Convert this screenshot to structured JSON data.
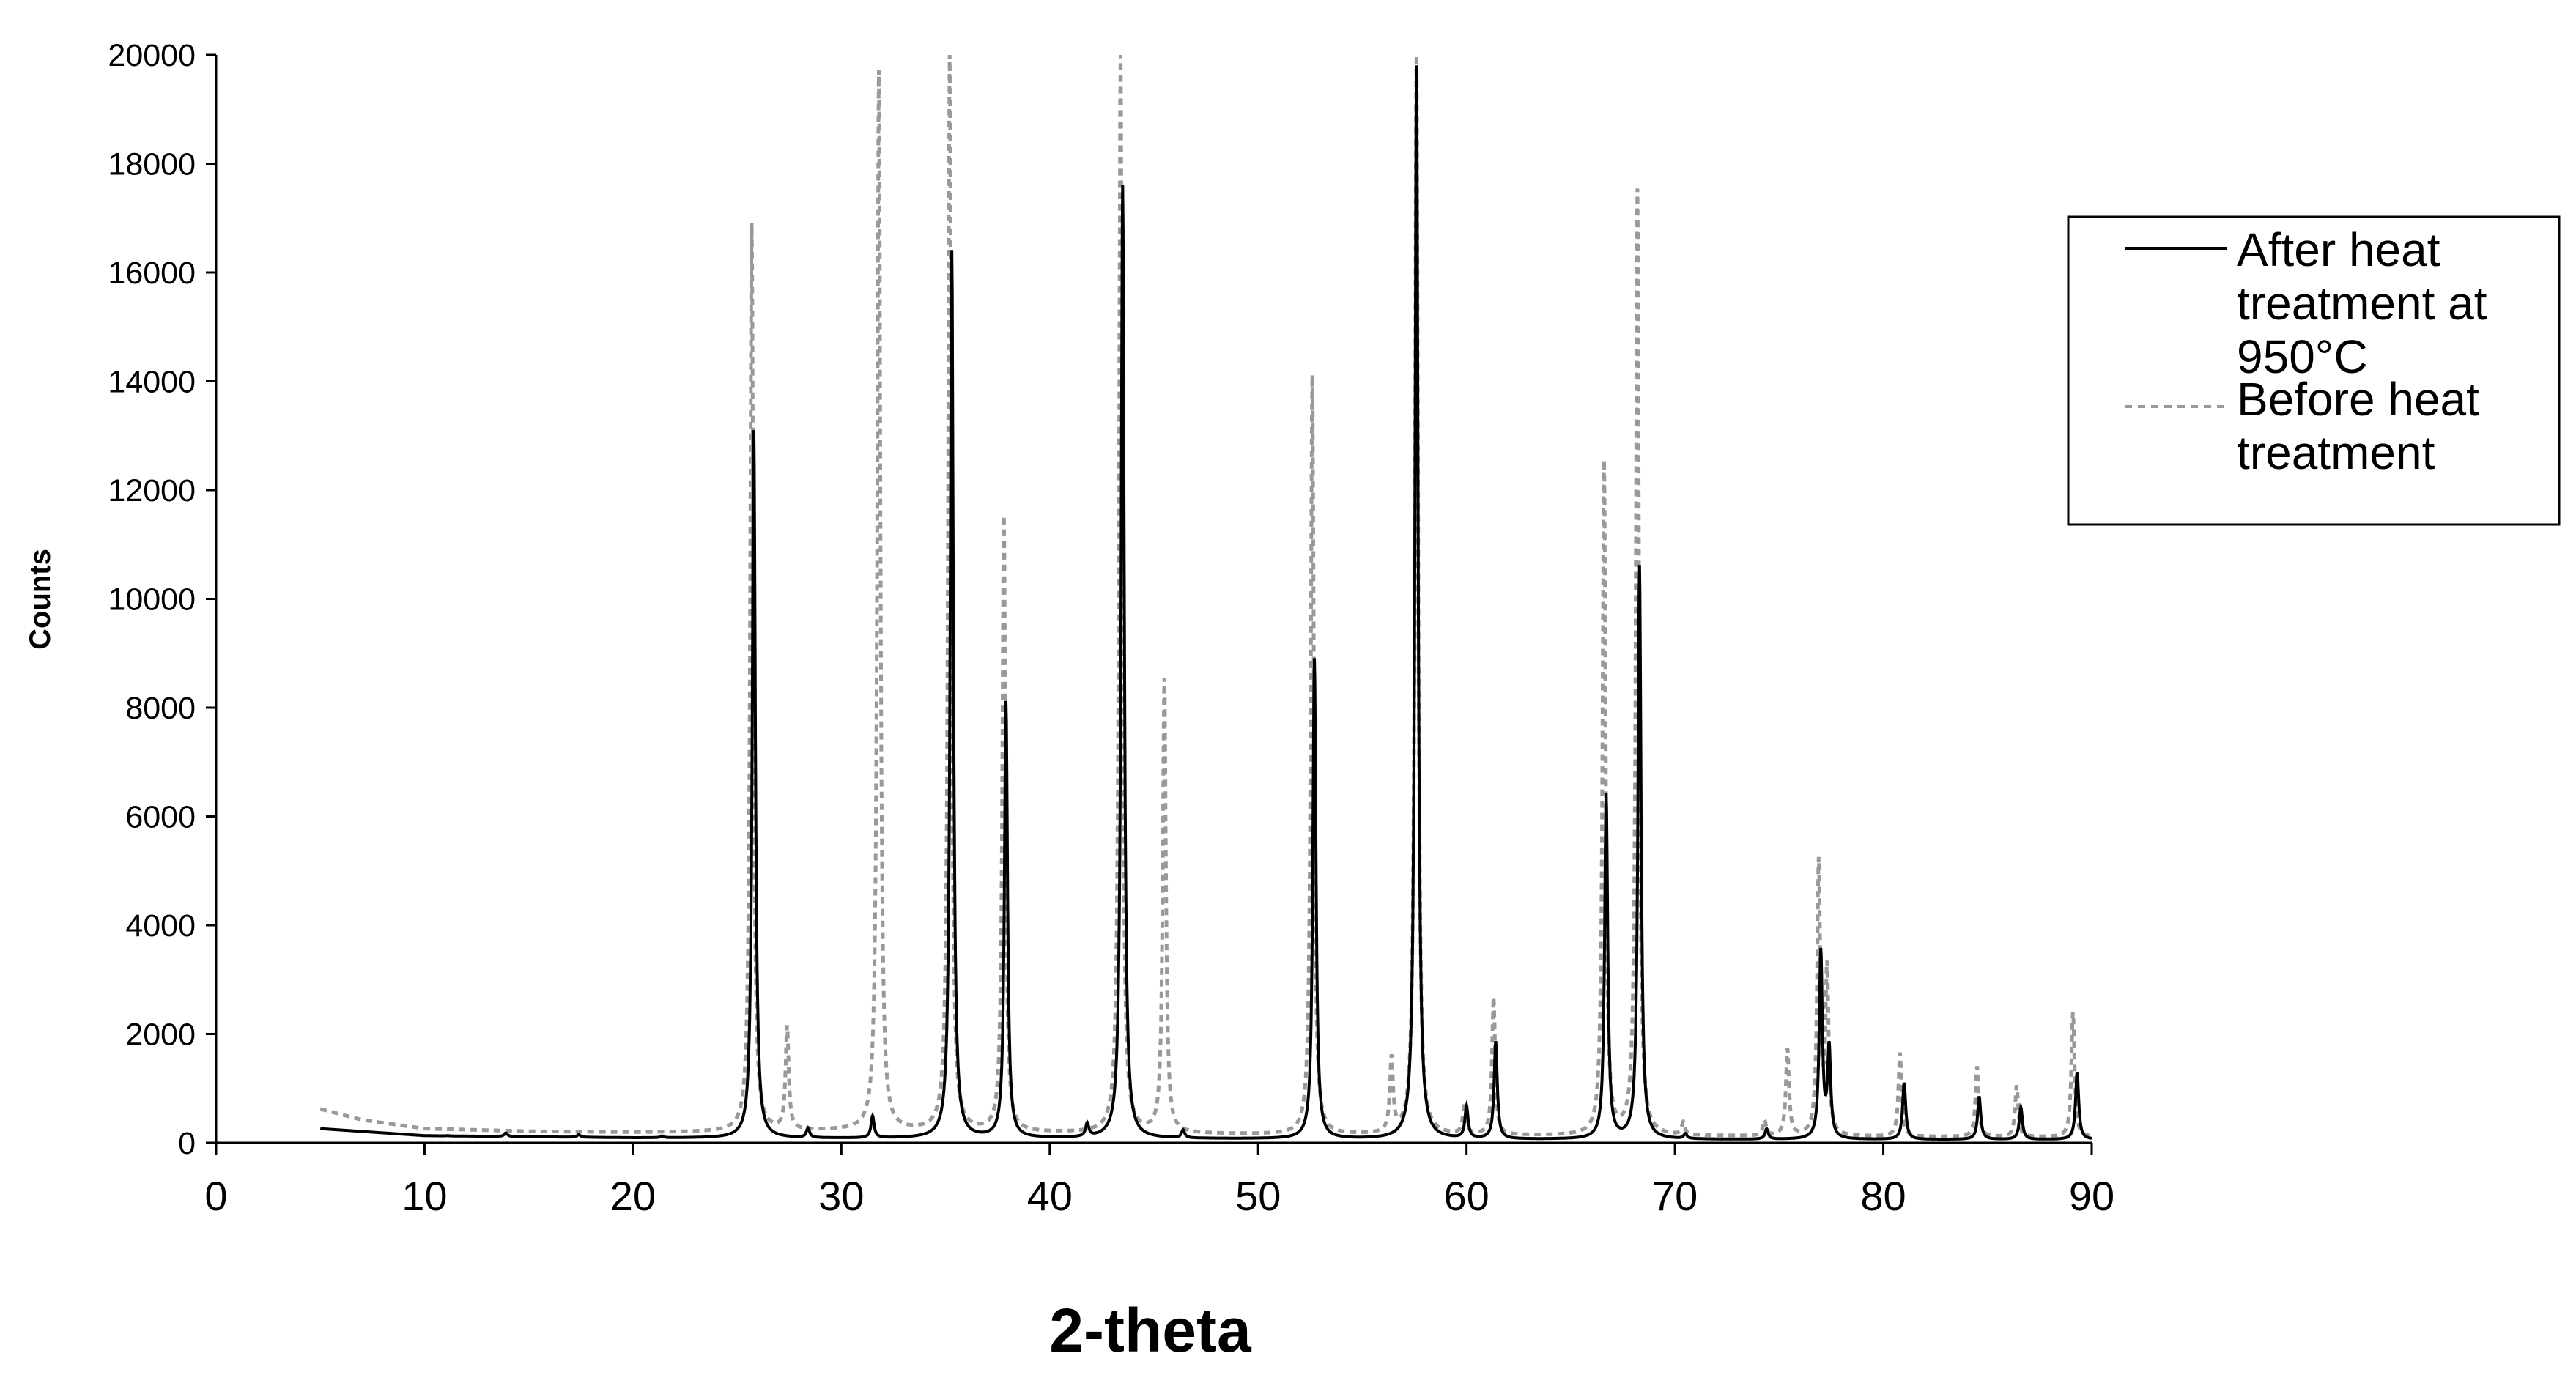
{
  "chart_data": {
    "type": "line",
    "title": "",
    "xlabel": "2-theta",
    "ylabel": "Counts",
    "xlim": [
      0,
      90
    ],
    "ylim": [
      0,
      20000
    ],
    "x_ticks": [
      0,
      10,
      20,
      30,
      40,
      50,
      60,
      70,
      80,
      90
    ],
    "y_ticks": [
      0,
      2000,
      4000,
      6000,
      8000,
      10000,
      12000,
      14000,
      16000,
      18000,
      20000
    ],
    "grid": false,
    "legend_position": "right",
    "series": [
      {
        "name": "After heat treatment at 950°C",
        "color": "#000000",
        "style": "solid",
        "baseline": [
          [
            5,
            260
          ],
          [
            10,
            130
          ],
          [
            20,
            90
          ],
          [
            30,
            80
          ],
          [
            40,
            80
          ],
          [
            50,
            70
          ],
          [
            60,
            60
          ],
          [
            70,
            60
          ],
          [
            80,
            60
          ],
          [
            90,
            60
          ]
        ],
        "peaks": [
          [
            11.1,
            130
          ],
          [
            13.9,
            180
          ],
          [
            17.4,
            150
          ],
          [
            21.4,
            120
          ],
          [
            25.8,
            13100
          ],
          [
            28.4,
            260
          ],
          [
            31.5,
            480
          ],
          [
            35.3,
            16400
          ],
          [
            37.9,
            8100
          ],
          [
            41.8,
            320
          ],
          [
            43.5,
            17600
          ],
          [
            46.4,
            220
          ],
          [
            52.7,
            8900
          ],
          [
            57.6,
            19800
          ],
          [
            60.0,
            650
          ],
          [
            61.4,
            1850
          ],
          [
            66.7,
            6400
          ],
          [
            68.3,
            10600
          ],
          [
            70.5,
            150
          ],
          [
            74.4,
            250
          ],
          [
            77.0,
            3500
          ],
          [
            77.4,
            1700
          ],
          [
            81.0,
            1100
          ],
          [
            84.6,
            850
          ],
          [
            86.6,
            650
          ],
          [
            89.3,
            1300
          ]
        ]
      },
      {
        "name": "Before heat treatment",
        "color": "#999999",
        "style": "dashed",
        "baseline": [
          [
            5,
            620
          ],
          [
            7,
            420
          ],
          [
            10,
            260
          ],
          [
            15,
            210
          ],
          [
            20,
            190
          ],
          [
            25,
            200
          ],
          [
            30,
            220
          ],
          [
            35,
            200
          ],
          [
            40,
            180
          ],
          [
            50,
            150
          ],
          [
            60,
            130
          ],
          [
            70,
            120
          ],
          [
            80,
            110
          ],
          [
            90,
            100
          ]
        ],
        "peaks": [
          [
            25.7,
            16900
          ],
          [
            27.4,
            2100
          ],
          [
            31.8,
            19700
          ],
          [
            35.2,
            20000
          ],
          [
            37.8,
            11500
          ],
          [
            43.4,
            20000
          ],
          [
            45.5,
            8500
          ],
          [
            52.6,
            14100
          ],
          [
            56.4,
            1500
          ],
          [
            57.6,
            20000
          ],
          [
            59.9,
            700
          ],
          [
            61.3,
            2650
          ],
          [
            66.6,
            12500
          ],
          [
            68.2,
            17500
          ],
          [
            70.4,
            350
          ],
          [
            74.3,
            400
          ],
          [
            75.4,
            1700
          ],
          [
            76.9,
            5100
          ],
          [
            77.3,
            3100
          ],
          [
            80.8,
            1650
          ],
          [
            84.5,
            1400
          ],
          [
            86.4,
            1050
          ],
          [
            89.1,
            2400
          ]
        ]
      }
    ],
    "legend": {
      "entries": [
        [
          "After heat",
          "treatment at",
          "950°C"
        ],
        [
          "Before heat",
          "treatment"
        ]
      ]
    }
  }
}
